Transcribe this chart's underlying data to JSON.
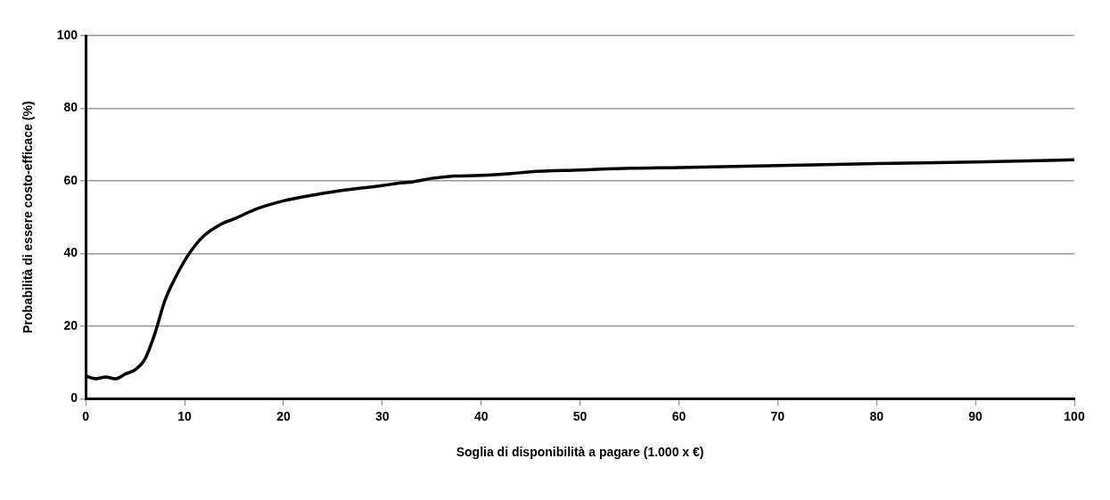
{
  "chart_data": {
    "type": "line",
    "xlabel": "Soglia di disponibilità a pagare (1.000 x €)",
    "ylabel": "Probabilità di essere costo-efficace (%)",
    "x": [
      0,
      1,
      2,
      3,
      4,
      5,
      6,
      7,
      8,
      9,
      10,
      11,
      12,
      13,
      14,
      15,
      17,
      20,
      25,
      30,
      32,
      33,
      35,
      37,
      40,
      43,
      45,
      50,
      55,
      60,
      70,
      80,
      90,
      100
    ],
    "series": [
      {
        "color": "#000000",
        "values": [
          6.3,
          5.5,
          6,
          5.5,
          6.8,
          8,
          11,
          18,
          27,
          33,
          38,
          42,
          45,
          47,
          48.5,
          49.5,
          52,
          54.5,
          57,
          58.7,
          59.5,
          59.7,
          60.7,
          61.3,
          61.5,
          62,
          62.5,
          63,
          63.5,
          63.7,
          64.2,
          64.8,
          65.2,
          65.8
        ]
      }
    ],
    "xlim": [
      0,
      100
    ],
    "xticks": [
      0,
      10,
      20,
      30,
      40,
      50,
      60,
      70,
      80,
      90,
      100
    ],
    "ylim": [
      0,
      100
    ],
    "yticks": [
      0,
      20,
      40,
      60,
      80,
      100
    ],
    "grid": "y",
    "legend": false,
    "marker": "none",
    "line_style": "solid"
  }
}
